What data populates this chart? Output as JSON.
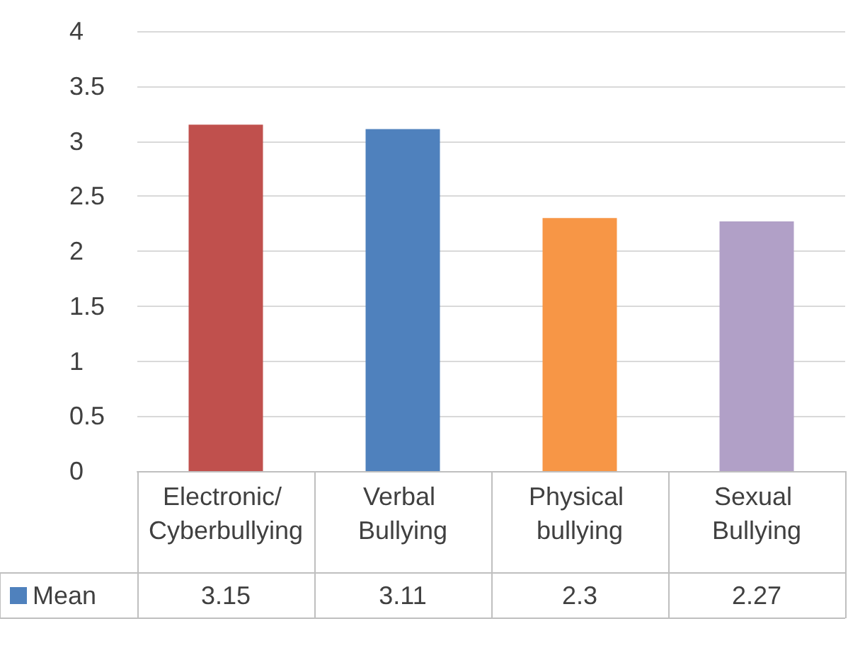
{
  "chart_data": {
    "type": "bar",
    "categories": [
      "Electronic/ Cyberbullying",
      "Verbal Bullying",
      "Physical bullying",
      "Sexual Bullying"
    ],
    "series": [
      {
        "name": "Mean",
        "color": "#4f81bd",
        "colors": [
          "#c0504d",
          "#4f81bd",
          "#f79646",
          "#b1a0c7"
        ],
        "values": [
          3.15,
          3.11,
          2.3,
          2.27
        ]
      }
    ],
    "ylim": [
      0,
      4
    ],
    "yticks": [
      0,
      0.5,
      1,
      1.5,
      2,
      2.5,
      3,
      3.5,
      4
    ],
    "grid": "y",
    "data_labels": true
  }
}
